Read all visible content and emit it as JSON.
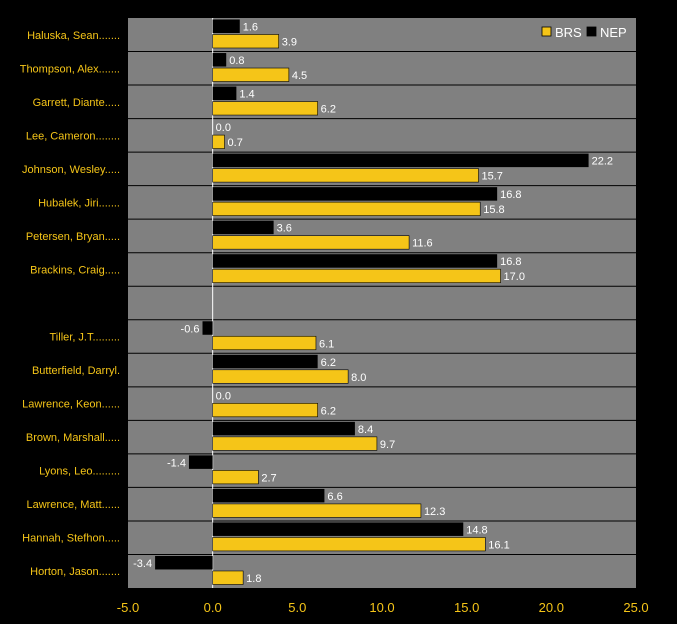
{
  "chart_data": {
    "type": "bar",
    "orientation": "horizontal",
    "categories": [
      "Haluska, Sean.......",
      "Thompson, Alex.......",
      "Garrett, Diante.....",
      "Lee, Cameron........",
      "Johnson, Wesley.....",
      "Hubalek, Jiri.......",
      "Petersen, Bryan.....",
      "Brackins, Craig.....",
      "",
      "Tiller, J.T.........",
      "Butterfield, Darryl.",
      "Lawrence, Keon......",
      "Brown, Marshall.....",
      "Lyons, Leo.........",
      "Lawrence, Matt......",
      "Hannah, Stefhon.....",
      "Horton, Jason......."
    ],
    "series": [
      {
        "name": "NEP",
        "color": "#000000",
        "values": [
          1.6,
          0.8,
          1.4,
          0.0,
          22.2,
          16.8,
          3.6,
          16.8,
          null,
          -0.6,
          6.2,
          0.0,
          8.4,
          -1.4,
          6.6,
          14.8,
          -3.4
        ],
        "labels": [
          "1.6",
          "0.8",
          "1.4",
          "0.0",
          "22.2",
          "16.8",
          "3.6",
          "16.8",
          "",
          "-0.6",
          "6.2",
          "0.0",
          "8.4",
          "-1.4",
          "6.6",
          "14.8",
          "-3.4"
        ]
      },
      {
        "name": "BRS",
        "color": "#f5c518",
        "values": [
          3.9,
          4.5,
          6.2,
          0.7,
          15.7,
          15.8,
          11.6,
          17.0,
          null,
          6.1,
          8.0,
          6.2,
          9.7,
          2.7,
          12.3,
          16.1,
          1.8
        ],
        "labels": [
          "3.9",
          "4.5",
          "6.2",
          "0.7",
          "15.7",
          "15.8",
          "11.6",
          "17.0",
          "",
          "6.1",
          "8.0",
          "6.2",
          "9.7",
          "2.7",
          "12.3",
          "16.1",
          "1.8"
        ]
      }
    ],
    "xlim": [
      -5,
      25
    ],
    "xticks": [
      "-5.0",
      "0.0",
      "5.0",
      "10.0",
      "15.0",
      "20.0",
      "25.0"
    ],
    "xtick_values": [
      -5,
      0,
      5,
      10,
      15,
      20,
      25
    ],
    "legend": {
      "position": "top-right",
      "order": [
        "BRS",
        "NEP"
      ]
    },
    "plot_background": "#808080",
    "grid": "horizontal separators between categories",
    "title": "",
    "xlabel": "",
    "ylabel": ""
  }
}
